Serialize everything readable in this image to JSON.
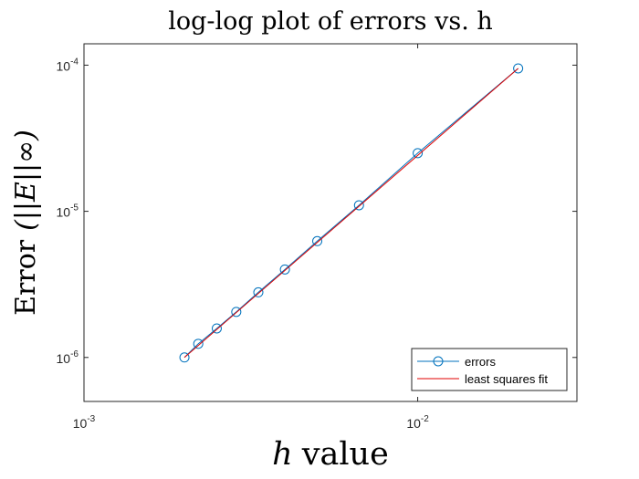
{
  "chart_data": {
    "type": "line",
    "title": "log-log plot of errors vs. h",
    "xlabel": {
      "math": "h",
      "text": "value"
    },
    "ylabel": {
      "text": "Error",
      "math": "(||E||∞)"
    },
    "xscale": "log",
    "yscale": "log",
    "xlim": [
      0.001,
      0.03
    ],
    "ylim": [
      5e-07,
      0.00014
    ],
    "xticks": [
      {
        "value": 0.001,
        "base": "10",
        "exp": "-3"
      },
      {
        "value": 0.01,
        "base": "10",
        "exp": "-2"
      }
    ],
    "yticks": [
      {
        "value": 1e-06,
        "base": "10",
        "exp": "-6"
      },
      {
        "value": 1e-05,
        "base": "10",
        "exp": "-5"
      },
      {
        "value": 0.0001,
        "base": "10",
        "exp": "-4"
      }
    ],
    "grid": false,
    "legend_position": "bottom-right",
    "series": [
      {
        "name": "errors",
        "color": "#0072BD",
        "marker": "circle",
        "x": [
          0.002,
          0.0022,
          0.0025,
          0.00286,
          0.00333,
          0.004,
          0.005,
          0.00667,
          0.01,
          0.02
        ],
        "y": [
          1e-06,
          1.24e-06,
          1.58e-06,
          2.05e-06,
          2.79e-06,
          4e-06,
          6.25e-06,
          1.1e-05,
          2.5e-05,
          9.5e-05
        ]
      },
      {
        "name": "least squares fit",
        "color": "#E00000",
        "marker": "none",
        "x": [
          0.002,
          0.02
        ],
        "y": [
          1e-06,
          9.5e-05
        ]
      }
    ]
  }
}
